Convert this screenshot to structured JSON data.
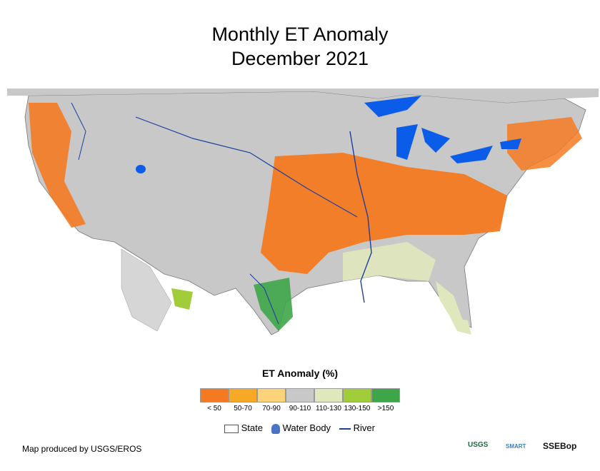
{
  "title": {
    "line1": "Monthly ET Anomaly",
    "line2": "December 2021"
  },
  "legend": {
    "title": "ET Anomaly (%)",
    "classes": [
      {
        "label": "< 50",
        "color": "#f47a22"
      },
      {
        "label": "50-70",
        "color": "#f7a825"
      },
      {
        "label": "70-90",
        "color": "#fdd37a"
      },
      {
        "label": "90-110",
        "color": "#c8c8c8"
      },
      {
        "label": "110-130",
        "color": "#dfe7bc"
      },
      {
        "label": "130-150",
        "color": "#a2cd3b"
      },
      {
        "label": ">150",
        "color": "#3ea649"
      }
    ],
    "keys": {
      "state": "State",
      "water": "Water Body",
      "river": "River"
    }
  },
  "credit": "Map produced by USGS/EROS",
  "logos": {
    "usgs": "USGS",
    "smart": "SMART",
    "ssebop": "SSEBop"
  },
  "colors": {
    "orange": "#f47a22",
    "neutral": "#c8c8c8",
    "water": "#0b5ce8",
    "river": "#1f3fa0",
    "green": "#3ea649"
  }
}
